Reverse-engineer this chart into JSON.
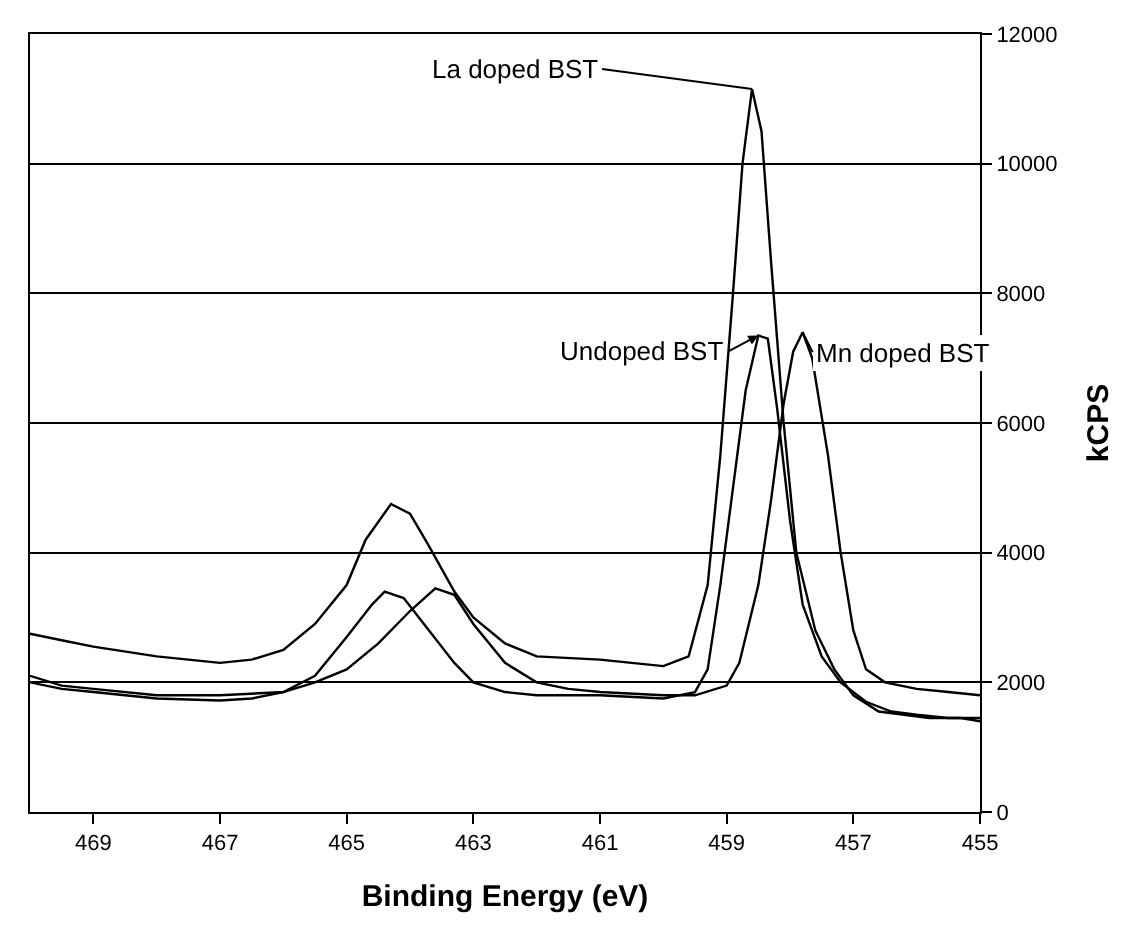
{
  "chart_data": {
    "type": "line",
    "xlabel": "Binding Energy (eV)",
    "ylabel": "kCPS",
    "xlim": [
      470,
      455
    ],
    "xticks": [
      469,
      467,
      465,
      463,
      461,
      459,
      457,
      455
    ],
    "ylim": [
      0,
      12000
    ],
    "yticks": [
      0,
      2000,
      4000,
      6000,
      8000,
      10000,
      12000
    ],
    "grid": "y",
    "series": [
      {
        "color": "#000000",
        "x": [
          470,
          469.5,
          469,
          468,
          467,
          466.5,
          466,
          465.5,
          465,
          464.7,
          464.3,
          464,
          463.7,
          463.3,
          463,
          462.5,
          462,
          461,
          460.5,
          460,
          459.6,
          459.3,
          459.1,
          458.9,
          458.75,
          458.6,
          458.45,
          458.3,
          458.1,
          457.9,
          457.6,
          457.3,
          457,
          456.6,
          456.2,
          455.8,
          455.3,
          455
        ],
        "values": [
          2750,
          2650,
          2550,
          2400,
          2300,
          2350,
          2500,
          2900,
          3500,
          4200,
          4750,
          4600,
          4100,
          3400,
          3000,
          2600,
          2400,
          2350,
          2300,
          2250,
          2400,
          3500,
          5500,
          8000,
          10000,
          11150,
          10500,
          8500,
          6000,
          4000,
          2800,
          2200,
          1800,
          1550,
          1500,
          1450,
          1450,
          1400
        ]
      },
      {
        "color": "#000000",
        "x": [
          470,
          469.5,
          469,
          468,
          467,
          466,
          465.5,
          465,
          464.6,
          464.4,
          464.1,
          463.7,
          463.3,
          463,
          462.5,
          462,
          461,
          460,
          459.5,
          459.3,
          459.1,
          458.9,
          458.7,
          458.5,
          458.35,
          458.2,
          458,
          457.8,
          457.5,
          457.2,
          456.8,
          456.4,
          456,
          455.5,
          455
        ],
        "values": [
          2100,
          1950,
          1900,
          1800,
          1800,
          1850,
          2100,
          2700,
          3200,
          3400,
          3300,
          2800,
          2300,
          2000,
          1850,
          1800,
          1800,
          1750,
          1850,
          2200,
          3500,
          5000,
          6500,
          7350,
          7300,
          6200,
          4500,
          3200,
          2400,
          2000,
          1700,
          1550,
          1500,
          1450,
          1450
        ]
      },
      {
        "color": "#000000",
        "x": [
          470,
          469.5,
          469,
          468,
          467,
          466.5,
          466,
          465.5,
          465,
          464.5,
          464,
          463.6,
          463.3,
          463,
          462.5,
          462,
          461.5,
          461,
          460,
          459.5,
          459,
          458.8,
          458.5,
          458.3,
          458.1,
          457.95,
          457.8,
          457.65,
          457.4,
          457.2,
          457,
          456.8,
          456.5,
          456,
          455.5,
          455
        ],
        "values": [
          2000,
          1900,
          1850,
          1750,
          1720,
          1750,
          1850,
          2000,
          2200,
          2600,
          3100,
          3450,
          3350,
          2900,
          2300,
          2000,
          1900,
          1850,
          1800,
          1800,
          1950,
          2300,
          3500,
          4800,
          6300,
          7100,
          7400,
          7000,
          5500,
          4000,
          2800,
          2200,
          2000,
          1900,
          1850,
          1800
        ]
      }
    ],
    "annotations": [
      {
        "text": "La doped BST",
        "x": 458.6,
        "y": 11150
      },
      {
        "text": "Undoped BST",
        "x": 458.5,
        "y": 7350
      },
      {
        "text": "Mn doped BST",
        "x": 457.8,
        "y": 7400
      }
    ]
  }
}
